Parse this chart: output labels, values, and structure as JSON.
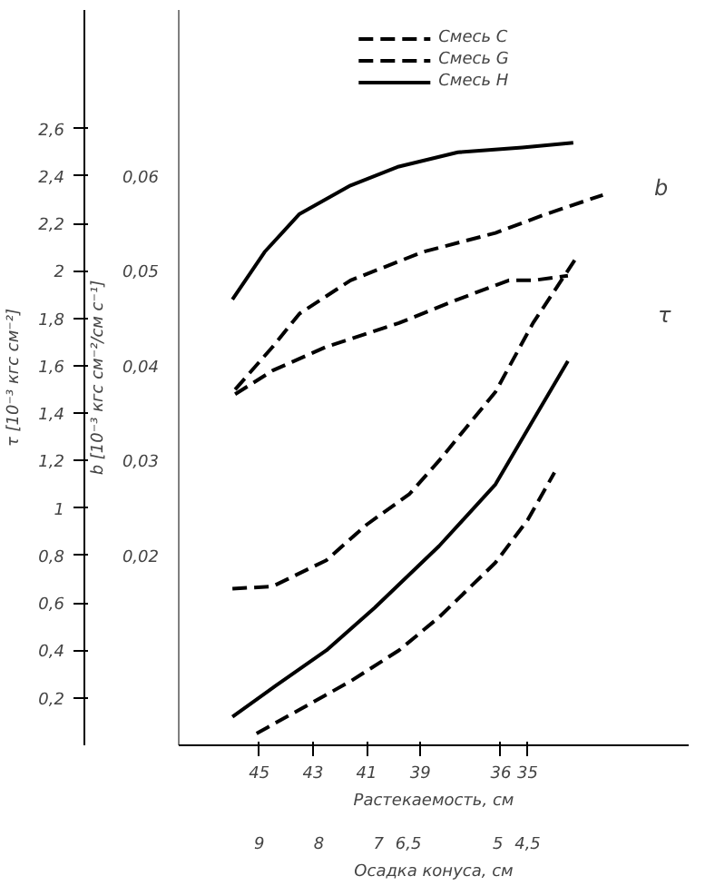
{
  "chart_data": {
    "type": "line",
    "xlabel": "Растекаемость, см",
    "x2label": "Осадка конуса, см",
    "ylabel": "τ [10⁻³ кгс см⁻²]",
    "y2label": "b [10⁻³ кгс см⁻²/см с⁻¹]",
    "xlim": [
      48,
      29
    ],
    "xticks": [
      45,
      43,
      41,
      39,
      36,
      35
    ],
    "x2lim": [
      10.35,
      1.8
    ],
    "x2ticks": [
      9,
      8,
      7,
      {
        "value": 6.5,
        "label": "6,5"
      },
      5,
      {
        "value": 4.5,
        "label": "4,5"
      }
    ],
    "ylim": [
      0,
      3.1
    ],
    "yticks": [
      {
        "value": 0.2,
        "label": "0,2"
      },
      {
        "value": 0.4,
        "label": "0,4"
      },
      {
        "value": 0.6,
        "label": "0,6"
      },
      {
        "value": 0.8,
        "label": "0,8"
      },
      1,
      {
        "value": 1.2,
        "label": "1,2"
      },
      {
        "value": 1.4,
        "label": "1,4"
      },
      {
        "value": 1.6,
        "label": "1,6"
      },
      {
        "value": 1.8,
        "label": "1,8"
      },
      2,
      {
        "value": 2.2,
        "label": "2,2"
      },
      {
        "value": 2.4,
        "label": "2,4"
      },
      {
        "value": 2.6,
        "label": "2,6"
      }
    ],
    "y2lim": [
      0,
      0.0775
    ],
    "y2ticks": [
      {
        "value": 0.02,
        "label": "0,02"
      },
      {
        "value": 0.03,
        "label": "0,03"
      },
      {
        "value": 0.04,
        "label": "0,04"
      },
      {
        "value": 0.05,
        "label": "0,05"
      },
      {
        "value": 0.06,
        "label": "0,06"
      }
    ],
    "grid": false,
    "legend": "top",
    "marker": "none",
    "series": [
      {
        "name": "Смесь С",
        "color": "#000000",
        "line_style": "dashed",
        "axis": "y2",
        "x": [
          45.9,
          44.5,
          43.5,
          41.6,
          38.9,
          36.2,
          34.3,
          32.2
        ],
        "values": [
          0.0375,
          0.042,
          0.0455,
          0.049,
          0.052,
          0.054,
          0.056,
          0.058
        ]
      },
      {
        "name": "Смесь G",
        "color": "#000000",
        "line_style": "dashed",
        "axis": "y2",
        "x": [
          45.9,
          44.5,
          42.5,
          39.8,
          37.6,
          35.7,
          34.8,
          33.5
        ],
        "values": [
          0.037,
          0.0395,
          0.042,
          0.0445,
          0.047,
          0.049,
          0.049,
          0.0495
        ]
      },
      {
        "name": "Смесь Н",
        "color": "#000000",
        "line_style": "solid",
        "axis": "y2",
        "x": [
          46.0,
          44.8,
          43.5,
          41.6,
          39.8,
          37.6,
          35.2,
          33.3
        ],
        "values": [
          0.047,
          0.052,
          0.056,
          0.059,
          0.061,
          0.0625,
          0.063,
          0.0635
        ]
      },
      {
        "color": "#000000",
        "line_style": "dashed",
        "x": [
          46.0,
          44.5,
          42.5,
          41.0,
          39.4,
          38.3,
          36.2,
          34.8,
          33.1
        ],
        "values": [
          0.66,
          0.67,
          0.78,
          0.93,
          1.06,
          1.2,
          1.49,
          1.78,
          2.07
        ]
      },
      {
        "color": "#000000",
        "line_style": "dashed",
        "x": [
          45.1,
          43.5,
          41.6,
          39.8,
          38.3,
          36.2,
          35.0,
          34.0
        ],
        "values": [
          0.05,
          0.15,
          0.27,
          0.4,
          0.54,
          0.77,
          0.95,
          1.15
        ]
      },
      {
        "color": "#000000",
        "line_style": "solid",
        "x": [
          46.0,
          44.4,
          42.5,
          40.7,
          38.3,
          36.2,
          34.8,
          33.5
        ],
        "values": [
          0.12,
          0.25,
          0.4,
          0.58,
          0.84,
          1.1,
          1.37,
          1.62
        ]
      }
    ],
    "annotations": [
      "b",
      "τ"
    ]
  }
}
